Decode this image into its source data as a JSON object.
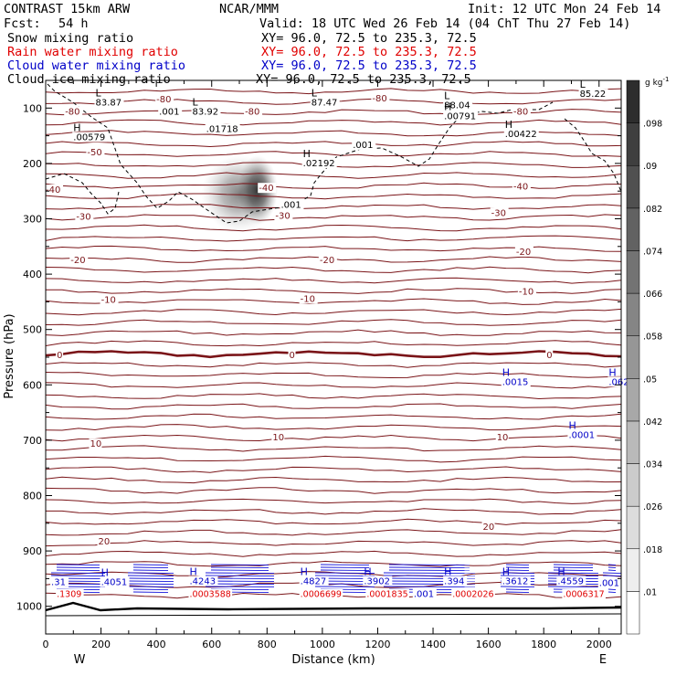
{
  "header": {
    "model": "CONTRAST 15km ARW",
    "org": "NCAR/MMM",
    "init": "Init: 12 UTC Mon 24 Feb 14",
    "fcst_label": "Fcst:",
    "fcst_value": "54 h",
    "valid": "Valid: 18 UTC Wed 26 Feb 14 (04 ChT Thu 27 Feb 14)",
    "fields": [
      {
        "name": "Snow mixing ratio",
        "xy": "XY=  96.0, 72.5 to 235.3, 72.5",
        "color": "#000000"
      },
      {
        "name": "Rain water mixing ratio",
        "xy": "XY=  96.0, 72.5 to 235.3, 72.5",
        "color": "#e00000"
      },
      {
        "name": "Cloud water mixing ratio",
        "xy": "XY=  96.0, 72.5 to 235.3, 72.5",
        "color": "#0000c8"
      },
      {
        "name": "Cloud ice mixing ratio",
        "xy": "XY=  96.0, 72.5 to 235.3, 72.5",
        "color": "#000000"
      }
    ]
  },
  "chart_data": {
    "type": "heatmap",
    "xlabel": "Distance (km)",
    "ylabel": "Pressure (hPa)",
    "xlim": [
      0,
      2080
    ],
    "ylim": [
      1050,
      50
    ],
    "x_ticks": [
      0,
      200,
      400,
      600,
      800,
      1000,
      1200,
      1400,
      1600,
      1800,
      2000
    ],
    "y_ticks": [
      100,
      200,
      300,
      400,
      500,
      600,
      700,
      800,
      900,
      1000
    ],
    "x_end_labels": {
      "left": "W",
      "right": "E"
    },
    "colorbar": {
      "unit": "g kg",
      "unit_exp": "-1",
      "ticks": [
        ".01",
        ".018",
        ".026",
        ".034",
        ".042",
        ".05",
        ".058",
        ".066",
        ".074",
        ".082",
        ".09",
        ".098"
      ]
    },
    "temperature_contours": {
      "color": "#7a1418",
      "labels": [
        {
          "text": "-80",
          "x": 70,
          "p": 112
        },
        {
          "text": "-80",
          "x": 400,
          "p": 90
        },
        {
          "text": "-80",
          "x": 720,
          "p": 112
        },
        {
          "text": "-80",
          "x": 1180,
          "p": 88
        },
        {
          "text": "-80",
          "x": 1690,
          "p": 112
        },
        {
          "text": "-50",
          "x": 150,
          "p": 185
        },
        {
          "text": "-40",
          "x": 0,
          "p": 253
        },
        {
          "text": "-40",
          "x": 770,
          "p": 250
        },
        {
          "text": "-40",
          "x": 1690,
          "p": 247
        },
        {
          "text": "-30",
          "x": 110,
          "p": 302
        },
        {
          "text": "-30",
          "x": 830,
          "p": 300
        },
        {
          "text": "-30",
          "x": 1610,
          "p": 295
        },
        {
          "text": "-20",
          "x": 90,
          "p": 380
        },
        {
          "text": "-20",
          "x": 990,
          "p": 380
        },
        {
          "text": "-20",
          "x": 1700,
          "p": 365
        },
        {
          "text": "-10",
          "x": 200,
          "p": 452
        },
        {
          "text": "-10",
          "x": 920,
          "p": 450
        },
        {
          "text": "-10",
          "x": 1710,
          "p": 437
        },
        {
          "text": "0",
          "x": 40,
          "p": 552
        },
        {
          "text": "0",
          "x": 880,
          "p": 552
        },
        {
          "text": "0",
          "x": 1810,
          "p": 552
        },
        {
          "text": "10",
          "x": 160,
          "p": 712
        },
        {
          "text": "10",
          "x": 820,
          "p": 700
        },
        {
          "text": "10",
          "x": 1630,
          "p": 700
        },
        {
          "text": "20",
          "x": 190,
          "p": 888
        },
        {
          "text": "20",
          "x": 1580,
          "p": 862
        }
      ]
    },
    "extrema_labels": [
      {
        "mark": "L",
        "value": "83.87",
        "x": 180,
        "p": 95
      },
      {
        "mark": "L",
        "value": "83.92",
        "x": 530,
        "p": 112
      },
      {
        "mark": "L",
        "value": "87.47",
        "x": 960,
        "p": 95
      },
      {
        "mark": "L",
        "value": "88.04",
        "x": 1440,
        "p": 100
      },
      {
        "mark": "L",
        "value": "85.22",
        "x": 1930,
        "p": 80
      },
      {
        "mark": "H",
        "value": ".00579",
        "x": 100,
        "p": 158
      },
      {
        "mark": "H",
        "value": ".00422",
        "x": 1660,
        "p": 152
      },
      {
        "mark": "H",
        "value": ".00791",
        "x": 1440,
        "p": 120
      },
      {
        "mark": "",
        "value": ".001",
        "x": 410,
        "p": 112
      },
      {
        "mark": "",
        "value": ".01718",
        "x": 580,
        "p": 143
      },
      {
        "mark": "H",
        "value": ".02192",
        "x": 930,
        "p": 205
      },
      {
        "mark": "",
        "value": ".001",
        "x": 1110,
        "p": 172
      },
      {
        "mark": "",
        "value": ".001",
        "x": 850,
        "p": 280
      }
    ],
    "cloud_water_labels": [
      {
        "mark": "H",
        "value": ".0015",
        "x": 1650,
        "p": 600
      },
      {
        "mark": "H",
        "value": ".062",
        "x": 2035,
        "p": 600
      },
      {
        "mark": "H",
        "value": ".0001",
        "x": 1890,
        "p": 696
      },
      {
        "mark": "H",
        "value": ".4051",
        "x": 200,
        "p": 962
      },
      {
        "mark": "",
        "value": ".31",
        "x": 20,
        "p": 962
      },
      {
        "mark": "H",
        "value": ".4243",
        "x": 520,
        "p": 960
      },
      {
        "mark": "H",
        "value": ".4827",
        "x": 920,
        "p": 960
      },
      {
        "mark": "H",
        "value": ".3902",
        "x": 1150,
        "p": 960
      },
      {
        "mark": "H",
        "value": ".394",
        "x": 1440,
        "p": 960
      },
      {
        "mark": "H",
        "value": ".3612",
        "x": 1650,
        "p": 960
      },
      {
        "mark": "H",
        "value": ".4559",
        "x": 1850,
        "p": 960
      },
      {
        "mark": "",
        "value": ".001",
        "x": 1330,
        "p": 983
      },
      {
        "mark": "",
        "value": ".001",
        "x": 2000,
        "p": 963
      }
    ],
    "rain_labels": [
      {
        "mark": "",
        "value": ".1309",
        "x": 40,
        "p": 983
      },
      {
        "mark": "",
        "value": ".0003588",
        "x": 520,
        "p": 983
      },
      {
        "mark": "",
        "value": ".0006699",
        "x": 920,
        "p": 983
      },
      {
        "mark": "",
        "value": ".0001835",
        "x": 1160,
        "p": 983
      },
      {
        "mark": "",
        "value": ".0002026",
        "x": 1470,
        "p": 983
      },
      {
        "mark": "",
        "value": ".0006317",
        "x": 1870,
        "p": 983
      }
    ]
  }
}
